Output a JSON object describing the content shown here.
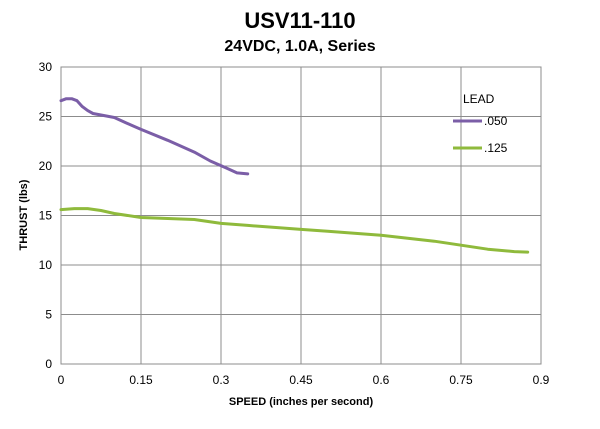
{
  "chart_data": {
    "type": "line",
    "title": "USV11-110",
    "subtitle": "24VDC, 1.0A, Series",
    "xlabel": "SPEED (inches per second)",
    "ylabel": "THRUST (lbs)",
    "xlim": [
      0,
      0.9
    ],
    "ylim": [
      0,
      30
    ],
    "xticks": [
      0,
      0.15,
      0.3,
      0.45,
      0.6,
      0.75,
      0.9
    ],
    "xtick_labels": [
      "0",
      "0.15",
      "0.3",
      "0.45",
      "0.6",
      "0.75",
      "0.9"
    ],
    "yticks": [
      0,
      5,
      10,
      15,
      20,
      25,
      30
    ],
    "ytick_labels": [
      "0",
      "5",
      "10",
      "15",
      "20",
      "25",
      "30"
    ],
    "grid": true,
    "legend": {
      "title": "LEAD",
      "placement": "right"
    },
    "series": [
      {
        "name": ".050",
        "color": "#7b5ea7",
        "x": [
          0,
          0.01,
          0.02,
          0.03,
          0.04,
          0.05,
          0.06,
          0.08,
          0.1,
          0.12,
          0.15,
          0.2,
          0.25,
          0.28,
          0.31,
          0.33,
          0.35
        ],
        "y": [
          26.6,
          26.8,
          26.8,
          26.6,
          26.0,
          25.6,
          25.3,
          25.1,
          24.9,
          24.4,
          23.7,
          22.6,
          21.4,
          20.5,
          19.8,
          19.3,
          19.2
        ]
      },
      {
        "name": ".125",
        "color": "#8fba3c",
        "x": [
          0,
          0.025,
          0.05,
          0.075,
          0.1,
          0.15,
          0.2,
          0.25,
          0.3,
          0.35,
          0.4,
          0.45,
          0.5,
          0.55,
          0.6,
          0.65,
          0.7,
          0.75,
          0.8,
          0.85,
          0.875
        ],
        "y": [
          15.6,
          15.7,
          15.7,
          15.5,
          15.2,
          14.8,
          14.7,
          14.6,
          14.2,
          14.0,
          13.8,
          13.6,
          13.4,
          13.2,
          13.0,
          12.7,
          12.4,
          12.0,
          11.6,
          11.35,
          11.3
        ]
      }
    ]
  }
}
